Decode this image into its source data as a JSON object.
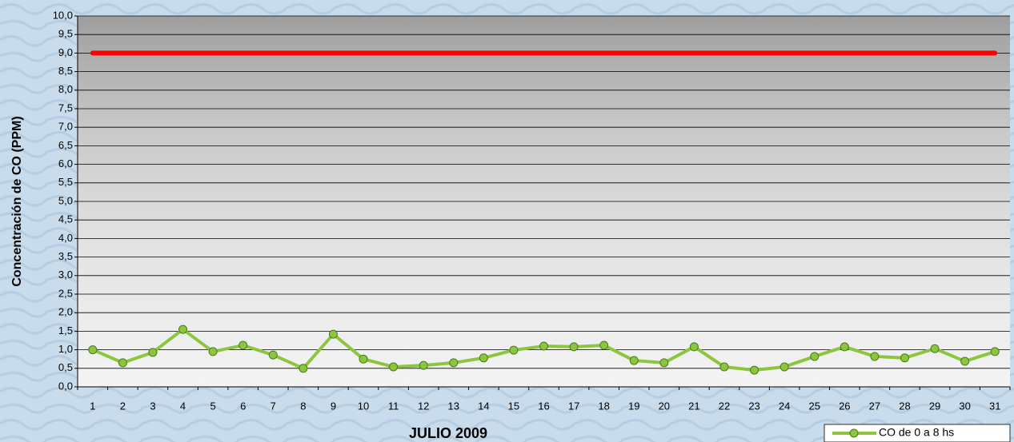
{
  "chart_data": {
    "type": "line",
    "x_label": "JULIO 2009",
    "y_label": "Concentración de CO (PPM)",
    "categories": [
      "1",
      "2",
      "3",
      "4",
      "5",
      "6",
      "7",
      "8",
      "9",
      "10",
      "11",
      "12",
      "13",
      "14",
      "15",
      "16",
      "17",
      "18",
      "19",
      "20",
      "21",
      "22",
      "23",
      "24",
      "25",
      "26",
      "27",
      "28",
      "29",
      "30",
      "31"
    ],
    "series": [
      {
        "name": "CO de 0 a 8 hs",
        "color": "#8cc63f",
        "values": [
          1.0,
          0.65,
          0.93,
          1.55,
          0.95,
          1.12,
          0.86,
          0.5,
          1.42,
          0.75,
          0.54,
          0.58,
          0.65,
          0.78,
          0.99,
          1.1,
          1.08,
          1.12,
          0.71,
          0.65,
          1.08,
          0.54,
          0.45,
          0.54,
          0.82,
          1.08,
          0.82,
          0.78,
          1.03,
          0.69,
          0.95
        ]
      }
    ],
    "reference_line": {
      "value": 9,
      "color": "#ff0000"
    },
    "ylim": [
      0,
      10
    ],
    "yticks": [
      {
        "value": 0,
        "label": "0,0"
      },
      {
        "value": 0.5,
        "label": "0,5"
      },
      {
        "value": 1,
        "label": "1,0"
      },
      {
        "value": 1.5,
        "label": "1,5"
      },
      {
        "value": 2,
        "label": "2,0"
      },
      {
        "value": 2.5,
        "label": "2,5"
      },
      {
        "value": 3,
        "label": "3,0"
      },
      {
        "value": 3.5,
        "label": "3,5"
      },
      {
        "value": 4,
        "label": "4,0"
      },
      {
        "value": 4.5,
        "label": "4,5"
      },
      {
        "value": 5,
        "label": "5,0"
      },
      {
        "value": 5.5,
        "label": "5,5"
      },
      {
        "value": 6,
        "label": "6,0"
      },
      {
        "value": 6.5,
        "label": "6,5"
      },
      {
        "value": 7,
        "label": "7,0"
      },
      {
        "value": 7.5,
        "label": "7,5"
      },
      {
        "value": 8,
        "label": "8,0"
      },
      {
        "value": 8.5,
        "label": "8,5"
      },
      {
        "value": 9,
        "label": "9,0"
      },
      {
        "value": 9.5,
        "label": "9,5"
      },
      {
        "value": 10,
        "label": "10,0"
      }
    ],
    "grid": true,
    "legend": "bottom-right"
  }
}
